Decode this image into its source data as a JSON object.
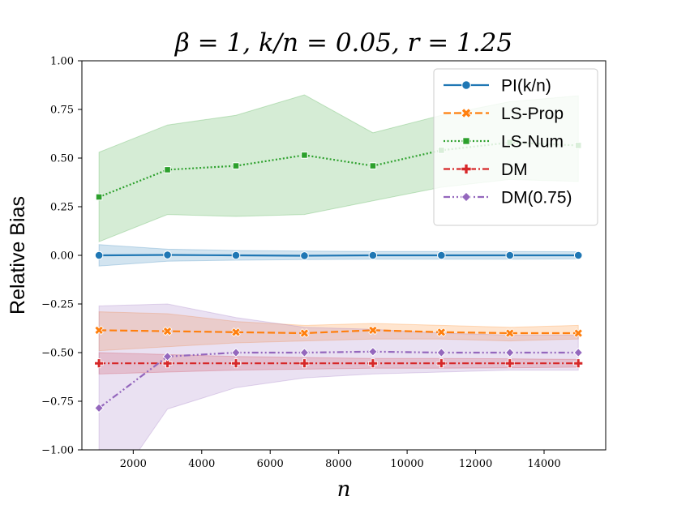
{
  "chart_data": {
    "type": "line",
    "title": "β = 1, k/n = 0.05, r = 1.25",
    "xlabel": "n",
    "ylabel": "Relative Bias",
    "xlim": [
      500,
      15800
    ],
    "ylim": [
      -1.0,
      1.0
    ],
    "x_ticks": [
      2000,
      4000,
      6000,
      8000,
      10000,
      12000,
      14000
    ],
    "x_tick_labels": [
      "2000",
      "4000",
      "6000",
      "8000",
      "10000",
      "12000",
      "14000"
    ],
    "y_ticks": [
      -1.0,
      -0.75,
      -0.5,
      -0.25,
      0.0,
      0.25,
      0.5,
      0.75,
      1.0
    ],
    "y_tick_labels": [
      "−1.00",
      "−0.75",
      "−0.50",
      "−0.25",
      "0.00",
      "0.25",
      "0.50",
      "0.75",
      "1.00"
    ],
    "grid": false,
    "legend_position": "top-right",
    "x": [
      1000,
      3000,
      5000,
      7000,
      9000,
      11000,
      13000,
      15000
    ],
    "series": [
      {
        "name": "PI(k/n)",
        "color": "#1f77b4",
        "linestyle": "solid",
        "marker": "circle",
        "values": [
          0.0,
          0.002,
          0.0,
          -0.002,
          0.0,
          0.0,
          0.0,
          0.0
        ],
        "lower": [
          -0.055,
          -0.03,
          -0.025,
          -0.022,
          -0.02,
          -0.02,
          -0.02,
          -0.018
        ],
        "upper": [
          0.055,
          0.032,
          0.025,
          0.022,
          0.02,
          0.02,
          0.02,
          0.018
        ]
      },
      {
        "name": "LS-Prop",
        "color": "#ff7f0e",
        "linestyle": "dashed",
        "marker": "x",
        "values": [
          -0.385,
          -0.39,
          -0.395,
          -0.4,
          -0.385,
          -0.395,
          -0.4,
          -0.4
        ],
        "lower": [
          -0.49,
          -0.47,
          -0.45,
          -0.44,
          -0.43,
          -0.43,
          -0.44,
          -0.43
        ],
        "upper": [
          -0.29,
          -0.3,
          -0.34,
          -0.36,
          -0.35,
          -0.36,
          -0.37,
          -0.36
        ]
      },
      {
        "name": "LS-Num",
        "color": "#2ca02c",
        "linestyle": "dotted",
        "marker": "square",
        "values": [
          0.3,
          0.44,
          0.46,
          0.515,
          0.46,
          0.54,
          0.58,
          0.565
        ],
        "lower": [
          0.07,
          0.21,
          0.2,
          0.21,
          0.28,
          0.35,
          0.39,
          0.38
        ],
        "upper": [
          0.53,
          0.67,
          0.72,
          0.825,
          0.63,
          0.72,
          0.79,
          0.82
        ]
      },
      {
        "name": "DM",
        "color": "#d62728",
        "linestyle": "dashdot",
        "marker": "plus",
        "values": [
          -0.555,
          -0.555,
          -0.555,
          -0.555,
          -0.555,
          -0.555,
          -0.555,
          -0.555
        ],
        "lower": [
          -0.61,
          -0.6,
          -0.59,
          -0.585,
          -0.58,
          -0.58,
          -0.578,
          -0.575
        ],
        "upper": [
          -0.5,
          -0.51,
          -0.52,
          -0.525,
          -0.53,
          -0.53,
          -0.532,
          -0.535
        ]
      },
      {
        "name": "DM(0.75)",
        "color": "#9467bd",
        "linestyle": "dashdotdot",
        "marker": "diamond",
        "values": [
          -0.785,
          -0.52,
          -0.5,
          -0.5,
          -0.495,
          -0.5,
          -0.5,
          -0.5
        ],
        "lower": [
          -1.3,
          -0.79,
          -0.68,
          -0.63,
          -0.61,
          -0.6,
          -0.59,
          -0.59
        ],
        "upper": [
          -0.26,
          -0.25,
          -0.32,
          -0.37,
          -0.38,
          -0.4,
          -0.41,
          -0.41
        ]
      }
    ]
  }
}
